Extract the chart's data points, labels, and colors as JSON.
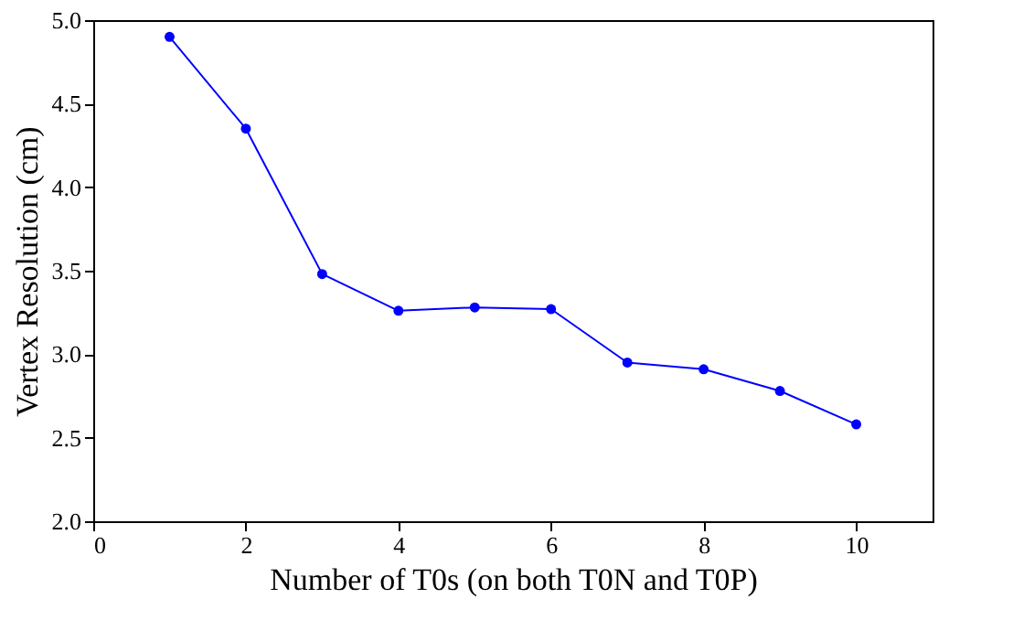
{
  "chart_data": {
    "type": "line",
    "xlabel": "Number of T0s (on both T0N and T0P)",
    "ylabel": "Vertex Resolution (cm)",
    "x": [
      1,
      2,
      3,
      4,
      5,
      6,
      7,
      8,
      9,
      10
    ],
    "series": [
      {
        "color": "#0000ff",
        "values": [
          4.9,
          4.35,
          3.48,
          3.26,
          3.28,
          3.27,
          2.95,
          2.91,
          2.78,
          2.58
        ]
      }
    ],
    "xlim": [
      0,
      11
    ],
    "xticks": [
      0,
      2,
      4,
      6,
      8,
      10
    ],
    "ylim": [
      2.0,
      5.0
    ],
    "yticks": [
      {
        "value": 2.0,
        "label": "2.0"
      },
      {
        "value": 2.5,
        "label": "2.5"
      },
      {
        "value": 3.0,
        "label": "3.0"
      },
      {
        "value": 3.5,
        "label": "3.5"
      },
      {
        "value": 4.0,
        "label": "4.0"
      },
      {
        "value": 4.5,
        "label": "4.5"
      },
      {
        "value": 5.0,
        "label": "5.0"
      }
    ],
    "grid": false,
    "marker": "circle",
    "line_style": "solid"
  }
}
